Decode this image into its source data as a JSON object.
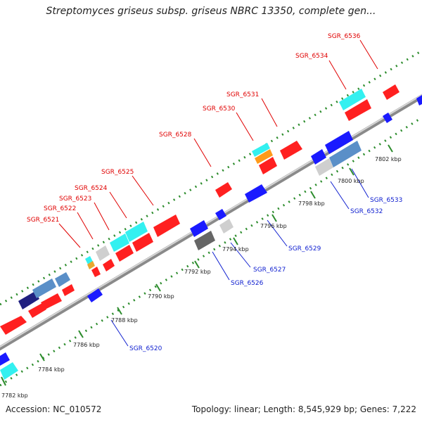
{
  "title": "Streptomyces griseus subsp. griseus NBRC 13350, complete gen...",
  "accession": "Accession: NC_010572",
  "stats": "Topology: linear; Length: 8,545,929 bp; Genes: 7,222",
  "kbp_labels": [
    "7782 kbp",
    "7784 kbp",
    "7786 kbp",
    "7788 kbp",
    "7790 kbp",
    "7792 kbp",
    "7794 kbp",
    "7796 kbp",
    "7798 kbp",
    "7800 kbp",
    "7802 kbp"
  ],
  "upper_gene_labels": [
    "SGR_6521",
    "SGR_6522",
    "SGR_6523",
    "SGR_6524",
    "SGR_6525",
    "SGR_6528",
    "SGR_6530",
    "SGR_6531",
    "SGR_6534",
    "SGR_6536"
  ],
  "lower_gene_labels": [
    "SGR_6520",
    "SGR_6526",
    "SGR_6527",
    "SGR_6529",
    "SGR_6532",
    "SGR_6533"
  ],
  "colors": {
    "red": "#ff2020",
    "blue": "#1a1aff",
    "cyan": "#33f0f0",
    "steel": "#5a8fc8",
    "gray": "#cfcfcf",
    "darkgray": "#666666",
    "orange": "#ff9a1a",
    "navy": "#202080",
    "label_red": "#e00000",
    "label_blue": "#1020d0",
    "dots": "#2c8c2c"
  }
}
